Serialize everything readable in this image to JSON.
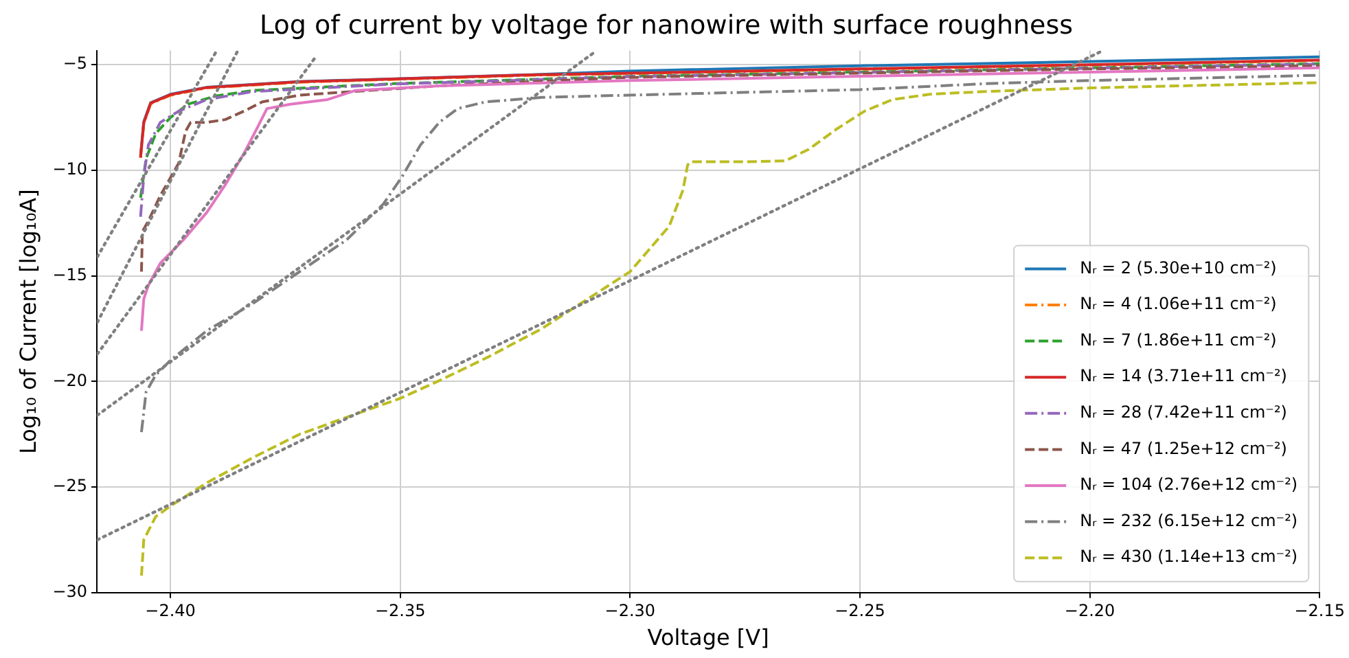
{
  "chart_data": {
    "type": "line",
    "title": "Log of current by voltage for nanowire with surface roughness",
    "xlabel": "Voltage [V]",
    "ylabel": "Log₁₀ of Current [log₁₀A]",
    "xlim": [
      -2.416,
      -2.15
    ],
    "xticks": [
      {
        "value": -2.4,
        "label": "−2.40"
      },
      {
        "value": -2.35,
        "label": "−2.35"
      },
      {
        "value": -2.3,
        "label": "−2.30"
      },
      {
        "value": -2.25,
        "label": "−2.25"
      },
      {
        "value": -2.2,
        "label": "−2.20"
      },
      {
        "value": -2.15,
        "label": "−2.15"
      }
    ],
    "ylim": [
      -30,
      -4.33
    ],
    "yticks": [
      {
        "value": -30,
        "label": "−30"
      },
      {
        "value": -25,
        "label": "−25"
      },
      {
        "value": -20,
        "label": "−20"
      },
      {
        "value": -15,
        "label": "−15"
      },
      {
        "value": -10,
        "label": "−10"
      },
      {
        "value": -5,
        "label": "−5"
      }
    ],
    "grid": true,
    "legend": "bottom right",
    "marker": "none",
    "series": [
      {
        "name": "Nᵣ = 2 (5.30e+10 cm⁻²)",
        "color": "#1f77b4",
        "line_style": "solid",
        "x": [
          -2.4065,
          -2.4058,
          -2.4043,
          -2.4,
          -2.3921,
          -2.3719,
          -2.3213,
          -2.3,
          -2.25,
          -2.2,
          -2.15
        ],
        "values": [
          -9.3,
          -7.7,
          -6.8,
          -6.4,
          -6.07,
          -5.8,
          -5.47,
          -5.3,
          -5.05,
          -4.85,
          -4.63
        ]
      },
      {
        "name": "Nᵣ = 4 (1.06e+11 cm⁻²)",
        "color": "#ff7f0e",
        "line_style": "dashdot",
        "x": [
          -2.4065,
          -2.4058,
          -2.4043,
          -2.4,
          -2.3921,
          -2.3719,
          -2.3213,
          -2.3,
          -2.25,
          -2.2,
          -2.15
        ],
        "values": [
          -9.4,
          -7.8,
          -6.85,
          -6.45,
          -6.1,
          -5.83,
          -5.5,
          -5.42,
          -5.22,
          -5.02,
          -4.8
        ]
      },
      {
        "name": "Nᵣ = 7 (1.86e+11 cm⁻²)",
        "color": "#2ca02c",
        "line_style": "dashed",
        "x": [
          -2.4065,
          -2.4053,
          -2.4032,
          -2.4,
          -2.3962,
          -2.3901,
          -2.382,
          -2.3516,
          -2.3,
          -2.25,
          -2.2,
          -2.15
        ],
        "values": [
          -11.3,
          -9.45,
          -8.26,
          -7.5,
          -6.87,
          -6.48,
          -6.22,
          -5.9,
          -5.55,
          -5.35,
          -5.15,
          -4.95
        ]
      },
      {
        "name": "Nᵣ = 14 (3.71e+11 cm⁻²)",
        "color": "#d62728",
        "line_style": "solid",
        "x": [
          -2.4065,
          -2.4058,
          -2.4043,
          -2.4,
          -2.3921,
          -2.3719,
          -2.3213,
          -2.3,
          -2.25,
          -2.2,
          -2.15
        ],
        "values": [
          -9.4,
          -7.75,
          -6.82,
          -6.42,
          -6.08,
          -5.81,
          -5.48,
          -5.4,
          -5.2,
          -5.0,
          -4.78
        ]
      },
      {
        "name": "Nᵣ = 28 (7.42e+11 cm⁻²)",
        "color": "#9467bd",
        "line_style": "dashdot",
        "x": [
          -2.4065,
          -2.4058,
          -2.4048,
          -2.4022,
          -2.3982,
          -2.3921,
          -2.382,
          -2.3516,
          -2.3,
          -2.25,
          -2.2,
          -2.15
        ],
        "values": [
          -12.2,
          -10.3,
          -8.8,
          -7.73,
          -7.2,
          -6.65,
          -6.27,
          -5.92,
          -5.57,
          -5.37,
          -5.17,
          -4.97
        ]
      },
      {
        "name": "Nᵣ = 47 (1.25e+12 cm⁻²)",
        "color": "#8c564b",
        "line_style": "dashed",
        "x": [
          -2.4063,
          -2.4061,
          -2.4048,
          -2.4022,
          -2.3982,
          -2.3967,
          -2.3956,
          -2.3921,
          -2.3881,
          -2.384,
          -2.38,
          -2.3719,
          -2.3415,
          -2.3,
          -2.25,
          -2.2,
          -2.15
        ],
        "values": [
          -14.8,
          -12.9,
          -12.4,
          -11.2,
          -9.66,
          -8.15,
          -7.73,
          -7.73,
          -7.6,
          -7.2,
          -6.76,
          -6.44,
          -6.0,
          -5.6,
          -5.4,
          -5.2,
          -5.05
        ]
      },
      {
        "name": "Nᵣ = 104 (2.76e+12 cm⁻²)",
        "color": "#e377c2",
        "line_style": "solid",
        "x": [
          -2.4063,
          -2.4058,
          -2.4048,
          -2.4022,
          -2.3972,
          -2.3921,
          -2.3881,
          -2.384,
          -2.381,
          -2.379,
          -2.3739,
          -2.3658,
          -2.3597,
          -2.3415,
          -2.3,
          -2.25,
          -2.2,
          -2.15
        ],
        "values": [
          -17.6,
          -16.1,
          -15.45,
          -14.4,
          -13.3,
          -12.0,
          -10.7,
          -9.2,
          -7.94,
          -7.08,
          -6.87,
          -6.65,
          -6.22,
          -6.0,
          -5.75,
          -5.55,
          -5.35,
          -5.15
        ]
      },
      {
        "name": "Nᵣ = 232 (6.15e+12 cm⁻²)",
        "color": "#7f7f7f",
        "line_style": "dashdot",
        "x": [
          -2.4063,
          -2.4053,
          -2.4032,
          -2.4,
          -2.3921,
          -2.382,
          -2.3719,
          -2.3617,
          -2.3537,
          -2.3496,
          -2.3456,
          -2.3415,
          -2.3375,
          -2.3314,
          -2.3192,
          -2.3,
          -2.25,
          -2.2227,
          -2.2,
          -2.15
        ],
        "values": [
          -22.4,
          -20.5,
          -19.7,
          -19.0,
          -17.6,
          -16.3,
          -14.8,
          -13.3,
          -11.6,
          -10.3,
          -8.8,
          -7.73,
          -7.08,
          -6.76,
          -6.55,
          -6.44,
          -6.18,
          -5.9,
          -5.75,
          -5.5
        ]
      },
      {
        "name": "Nᵣ = 430 (1.14e+13 cm⁻²)",
        "color": "#bcbd22",
        "line_style": "dashed",
        "x": [
          -2.4063,
          -2.4058,
          -2.4032,
          -2.4,
          -2.3921,
          -2.382,
          -2.3719,
          -2.3617,
          -2.35,
          -2.3415,
          -2.3314,
          -2.3192,
          -2.3107,
          -2.3,
          -2.2915,
          -2.2885,
          -2.2875,
          -2.2869,
          -2.2753,
          -2.2662,
          -2.2611,
          -2.2551,
          -2.249,
          -2.2429,
          -2.2348,
          -2.2227,
          -2.2,
          -2.15
        ],
        "values": [
          -29.2,
          -27.5,
          -26.4,
          -25.9,
          -24.8,
          -23.6,
          -22.5,
          -21.7,
          -20.8,
          -19.96,
          -18.9,
          -17.5,
          -16.3,
          -14.8,
          -12.65,
          -10.94,
          -9.76,
          -9.6,
          -9.6,
          -9.55,
          -9.0,
          -8.05,
          -7.2,
          -6.65,
          -6.4,
          -6.27,
          -6.1,
          -5.85
        ]
      },
      {
        "color": "#808080",
        "line_style": "dotted",
        "x": [
          -2.4159,
          -2.3901
        ],
        "values": [
          -14.1,
          -4.4
        ]
      },
      {
        "color": "#808080",
        "line_style": "dotted",
        "x": [
          -2.4159,
          -2.3855
        ],
        "values": [
          -17.2,
          -4.4
        ]
      },
      {
        "color": "#808080",
        "line_style": "dotted",
        "x": [
          -2.4159,
          -2.3683
        ],
        "values": [
          -18.7,
          -4.6
        ]
      },
      {
        "color": "#808080",
        "line_style": "dotted",
        "x": [
          -2.4159,
          -2.3077
        ],
        "values": [
          -21.6,
          -4.4
        ]
      },
      {
        "color": "#808080",
        "line_style": "dotted",
        "x": [
          -2.4159,
          -2.1978
        ],
        "values": [
          -27.5,
          -4.4
        ]
      }
    ]
  }
}
